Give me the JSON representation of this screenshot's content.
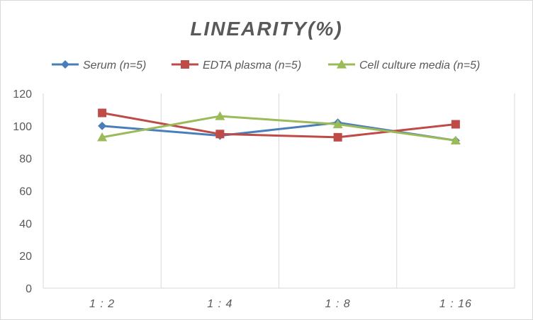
{
  "chart_data": {
    "type": "line",
    "title": "LINEARITY(%)",
    "xlabel": "",
    "ylabel": "",
    "categories": [
      "1:2",
      "1:4",
      "1:8",
      "1:16"
    ],
    "ylim": [
      0,
      120
    ],
    "yticks": [
      0,
      20,
      40,
      60,
      80,
      100,
      120
    ],
    "grid": "vertical",
    "legend_position": "top",
    "series": [
      {
        "name": "Serum (n=5)",
        "color": "#4a7ebb",
        "marker": "diamond",
        "values": [
          100,
          94,
          102,
          91
        ]
      },
      {
        "name": "EDTA plasma (n=5)",
        "color": "#be4b48",
        "marker": "square",
        "values": [
          108,
          95,
          93,
          101
        ]
      },
      {
        "name": "Cell culture media (n=5)",
        "color": "#9bbb59",
        "marker": "triangle",
        "values": [
          93,
          106,
          101,
          91
        ]
      }
    ]
  }
}
